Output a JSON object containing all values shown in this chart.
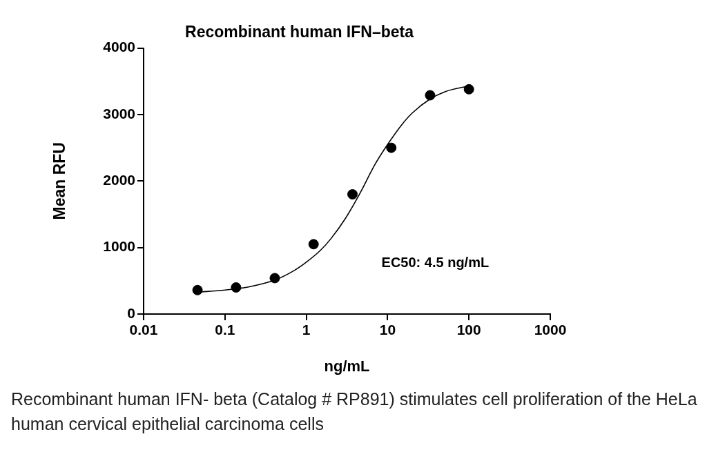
{
  "chart_data": {
    "type": "scatter",
    "title": "Recombinant human IFN–beta",
    "xlabel": "ng/mL",
    "ylabel": "Mean RFU",
    "log": "x",
    "xlim": [
      0.01,
      1000
    ],
    "xticks": [
      0.01,
      0.1,
      1,
      10,
      100,
      1000
    ],
    "ylim": [
      0,
      4000
    ],
    "yticks": [
      0,
      1000,
      2000,
      3000,
      4000
    ],
    "grid": false,
    "legend": false,
    "series": [
      {
        "marker": "circle",
        "color": "#000000",
        "x": [
          0.046,
          0.137,
          0.41,
          1.23,
          3.7,
          11.1,
          33.3,
          100
        ],
        "values": [
          360,
          400,
          540,
          1050,
          1800,
          2500,
          3290,
          3380
        ]
      },
      {
        "type": "line",
        "marker": "none",
        "color": "#000000",
        "x": [
          0.046,
          0.1,
          0.2,
          0.41,
          0.7,
          1,
          1.5,
          2,
          3,
          4.5,
          7,
          10,
          15,
          20,
          33,
          50,
          100
        ],
        "values": [
          330,
          360,
          410,
          510,
          650,
          780,
          960,
          1130,
          1430,
          1800,
          2250,
          2550,
          2850,
          3020,
          3230,
          3340,
          3430
        ]
      }
    ],
    "annotations": [
      "EC50: 4.5 ng/mL",
      "Recombinant human IFN- beta (Catalog # RP891) stimulates cell proliferation of the HeLa human cervical epithelial carcinoma cells"
    ]
  }
}
